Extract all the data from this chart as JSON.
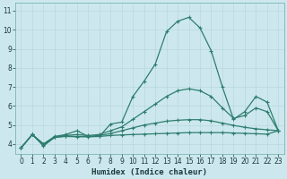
{
  "xlabel": "Humidex (Indice chaleur)",
  "bg_color": "#cce8ee",
  "grid_color": "#b8d8de",
  "line_color": "#2e7d6e",
  "xlim": [
    -0.5,
    23.5
  ],
  "ylim": [
    3.5,
    11.4
  ],
  "xticks": [
    0,
    1,
    2,
    3,
    4,
    5,
    6,
    7,
    8,
    9,
    10,
    11,
    12,
    13,
    14,
    15,
    16,
    17,
    18,
    19,
    20,
    21,
    22,
    23
  ],
  "yticks": [
    4,
    5,
    6,
    7,
    8,
    9,
    10,
    11
  ],
  "series": [
    {
      "x": [
        0,
        1,
        2,
        3,
        4,
        5,
        6,
        7,
        8,
        9,
        10,
        11,
        12,
        13,
        14,
        15,
        16,
        17,
        18,
        19,
        20,
        21,
        22,
        23
      ],
      "y": [
        3.8,
        4.5,
        4.0,
        4.4,
        4.5,
        4.7,
        4.4,
        4.4,
        5.05,
        5.15,
        6.5,
        7.3,
        8.2,
        9.9,
        10.45,
        10.65,
        10.1,
        8.9,
        7.0,
        5.3,
        5.7,
        6.5,
        6.2,
        4.7
      ]
    },
    {
      "x": [
        0,
        1,
        2,
        3,
        4,
        5,
        6,
        7,
        8,
        9,
        10,
        11,
        12,
        13,
        14,
        15,
        16,
        17,
        18,
        19,
        20,
        21,
        22,
        23
      ],
      "y": [
        3.8,
        4.5,
        3.9,
        4.35,
        4.4,
        4.38,
        4.38,
        4.4,
        4.45,
        4.48,
        4.5,
        4.52,
        4.54,
        4.56,
        4.58,
        4.6,
        4.6,
        4.6,
        4.6,
        4.58,
        4.56,
        4.54,
        4.52,
        4.7
      ]
    },
    {
      "x": [
        0,
        1,
        2,
        3,
        4,
        5,
        6,
        7,
        8,
        9,
        10,
        11,
        12,
        13,
        14,
        15,
        16,
        17,
        18,
        19,
        20,
        21,
        22,
        23
      ],
      "y": [
        3.8,
        4.5,
        3.95,
        4.35,
        4.42,
        4.4,
        4.4,
        4.45,
        4.55,
        4.7,
        4.85,
        5.0,
        5.1,
        5.2,
        5.25,
        5.28,
        5.28,
        5.22,
        5.1,
        4.98,
        4.88,
        4.8,
        4.75,
        4.7
      ]
    },
    {
      "x": [
        0,
        1,
        2,
        3,
        4,
        5,
        6,
        7,
        8,
        9,
        10,
        11,
        12,
        13,
        14,
        15,
        16,
        17,
        18,
        19,
        20,
        21,
        22,
        23
      ],
      "y": [
        3.8,
        4.5,
        4.0,
        4.38,
        4.45,
        4.5,
        4.45,
        4.5,
        4.7,
        4.9,
        5.3,
        5.7,
        6.1,
        6.5,
        6.8,
        6.9,
        6.8,
        6.5,
        5.9,
        5.35,
        5.5,
        5.9,
        5.7,
        4.7
      ]
    }
  ],
  "marker": "+",
  "markersize": 3.5,
  "linewidth": 0.9,
  "tick_fontsize": 5.5,
  "xlabel_fontsize": 6.5
}
